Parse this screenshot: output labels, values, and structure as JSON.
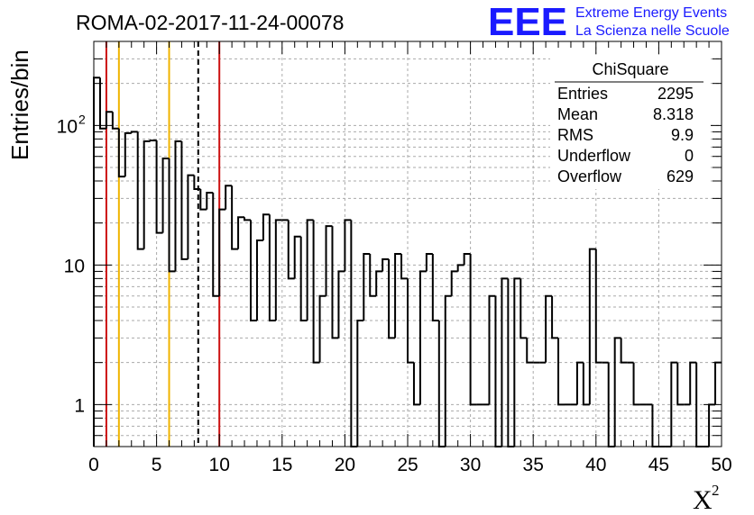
{
  "chart_data": {
    "type": "histogram",
    "title": "ROMA-02-2017-11-24-00078",
    "xlabel": "X",
    "xlabel_superscript": "2",
    "ylabel": "Entries/bin",
    "xlim": [
      0,
      50
    ],
    "ylim": [
      0.5,
      400
    ],
    "y_scale": "log",
    "grid": true,
    "bin_width": 0.5,
    "x_ticks": [
      "0",
      "5",
      "10",
      "15",
      "20",
      "25",
      "30",
      "35",
      "40",
      "45",
      "50"
    ],
    "y_ticks": [
      {
        "value": 1,
        "label": "1"
      },
      {
        "value": 10,
        "label": "10"
      },
      {
        "value": 100,
        "label": "10",
        "exponent": "2"
      }
    ],
    "values": [
      220,
      95,
      125,
      95,
      43,
      88,
      90,
      13,
      77,
      78,
      17,
      58,
      9,
      77,
      11,
      44,
      35,
      25,
      33,
      6,
      25,
      37,
      13,
      22,
      21,
      4,
      15,
      23,
      4,
      21,
      21,
      8,
      16,
      4,
      21,
      2,
      6,
      19,
      3,
      9,
      21,
      0,
      4,
      12,
      6,
      9,
      11,
      3,
      12,
      8,
      2,
      1,
      9,
      12,
      4,
      0,
      6,
      9,
      10,
      12,
      1,
      1,
      1,
      6,
      0,
      8,
      0,
      8,
      3,
      2,
      2,
      2,
      6,
      3,
      1,
      1,
      1,
      2,
      1,
      13,
      2,
      2,
      0,
      3,
      2,
      2,
      1,
      1,
      1,
      0,
      0,
      0,
      2,
      1,
      1,
      2,
      0,
      0,
      1,
      2,
      2
    ],
    "vertical_lines": [
      {
        "x": 1,
        "color": "#cc1111",
        "style": "solid"
      },
      {
        "x": 2,
        "color": "#f0b400",
        "style": "solid"
      },
      {
        "x": 6,
        "color": "#f0b400",
        "style": "solid"
      },
      {
        "x": 8.318,
        "color": "#000000",
        "style": "dashed"
      },
      {
        "x": 10,
        "color": "#cc1111",
        "style": "solid"
      }
    ],
    "stats": {
      "title": "ChiSquare",
      "rows": [
        {
          "label": "Entries",
          "value": "2295"
        },
        {
          "label": "Mean",
          "value": "8.318"
        },
        {
          "label": "RMS",
          "value": "9.9"
        },
        {
          "label": "Underflow",
          "value": "0"
        },
        {
          "label": "Overflow",
          "value": "629"
        }
      ]
    }
  },
  "logo": {
    "big": "EEE",
    "line1": "Extreme Energy Events",
    "line2": "La Scienza nelle Scuole"
  },
  "colors": {
    "logo": "#1a1aff",
    "grid": "#aaaaaa"
  }
}
